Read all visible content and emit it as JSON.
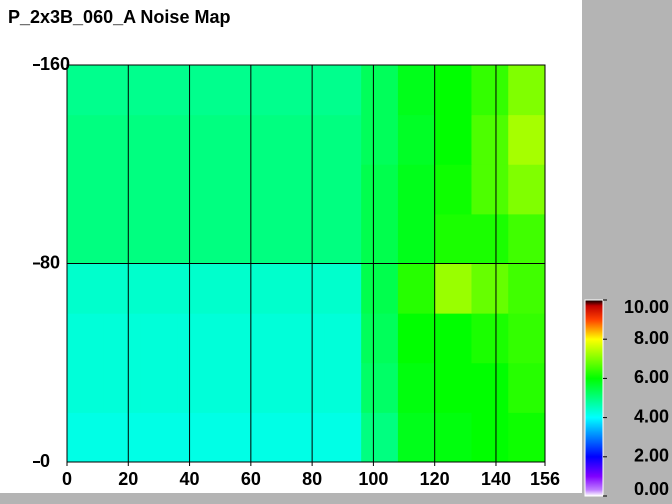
{
  "chart_data": {
    "type": "heatmap",
    "title": "P_2x3B_060_A Noise Map",
    "xlim": [
      0,
      156
    ],
    "ylim": [
      0,
      160
    ],
    "xticks": [
      0,
      20,
      40,
      60,
      80,
      100,
      120,
      140,
      156
    ],
    "yticks": [
      0,
      80,
      160
    ],
    "grid_x": [
      20,
      40,
      60,
      80,
      100,
      120,
      140
    ],
    "grid_y": [
      80
    ],
    "x_bins": [
      0,
      12,
      24,
      36,
      48,
      60,
      72,
      84,
      96,
      108,
      120,
      132,
      144,
      156
    ],
    "y_bins": [
      0,
      20,
      40,
      60,
      80,
      100,
      120,
      140,
      160
    ],
    "z": [
      [
        4.2,
        4.2,
        4.2,
        4.2,
        4.2,
        4.2,
        4.2,
        4.2,
        5.0,
        5.8,
        5.9,
        6.0,
        6.1
      ],
      [
        4.3,
        4.3,
        4.3,
        4.3,
        4.3,
        4.3,
        4.3,
        4.3,
        5.2,
        5.9,
        6.0,
        6.0,
        6.3
      ],
      [
        4.3,
        4.3,
        4.3,
        4.3,
        4.3,
        4.3,
        4.3,
        4.3,
        5.3,
        6.0,
        6.0,
        6.2,
        6.4
      ],
      [
        4.4,
        4.4,
        4.4,
        4.4,
        4.4,
        4.4,
        4.4,
        4.4,
        5.4,
        6.3,
        7.2,
        6.8,
        6.5
      ],
      [
        5.0,
        5.0,
        5.0,
        5.0,
        5.0,
        5.0,
        5.0,
        5.0,
        5.4,
        5.8,
        6.2,
        6.2,
        6.5
      ],
      [
        5.0,
        5.0,
        5.0,
        5.0,
        5.0,
        5.0,
        5.0,
        5.0,
        5.4,
        5.8,
        6.1,
        6.6,
        7.0
      ],
      [
        5.0,
        5.0,
        5.0,
        5.0,
        5.0,
        5.0,
        5.0,
        5.0,
        5.3,
        5.7,
        6.0,
        6.6,
        7.3
      ],
      [
        4.9,
        4.9,
        4.9,
        4.9,
        4.9,
        4.9,
        4.9,
        4.9,
        5.3,
        5.8,
        6.0,
        6.4,
        7.0
      ]
    ],
    "zlim": [
      0,
      10
    ],
    "zticks": [
      {
        "value": 0,
        "label": "0.00"
      },
      {
        "value": 2,
        "label": "2.00"
      },
      {
        "value": 4,
        "label": "4.00"
      },
      {
        "value": 6,
        "label": "6.00"
      },
      {
        "value": 8,
        "label": "8.00"
      },
      {
        "value": 10,
        "label": "10.00"
      }
    ],
    "colormap": [
      {
        "value": 0,
        "color": "#ffffff"
      },
      {
        "value": 0.3,
        "color": "#c080ff"
      },
      {
        "value": 1,
        "color": "#8000ff"
      },
      {
        "value": 2,
        "color": "#0000ff"
      },
      {
        "value": 3,
        "color": "#0080ff"
      },
      {
        "value": 4,
        "color": "#00ffff"
      },
      {
        "value": 5,
        "color": "#00ff80"
      },
      {
        "value": 6,
        "color": "#00ff00"
      },
      {
        "value": 7,
        "color": "#80ff00"
      },
      {
        "value": 8,
        "color": "#ffff00"
      },
      {
        "value": 9,
        "color": "#ff4000"
      },
      {
        "value": 9.7,
        "color": "#c00000"
      },
      {
        "value": 10,
        "color": "#000000"
      }
    ],
    "grid_color": "#000000"
  }
}
